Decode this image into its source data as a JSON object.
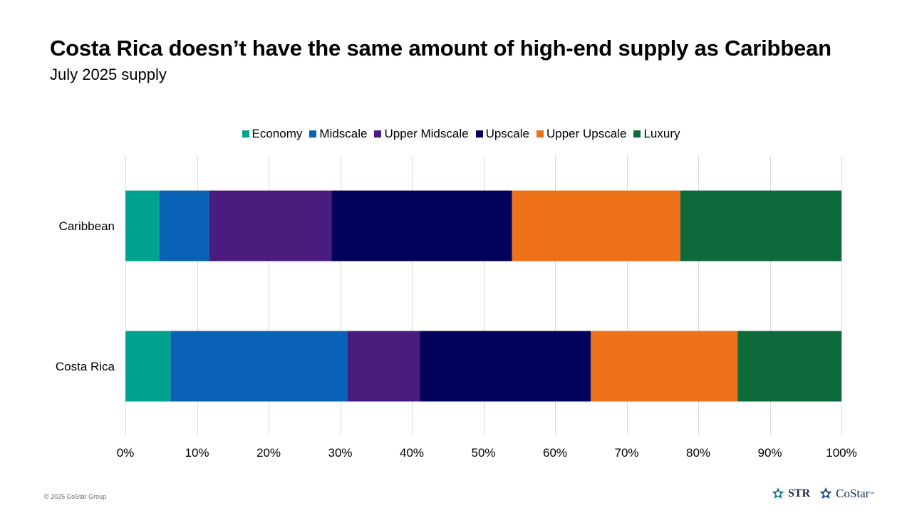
{
  "header": {
    "title": "Costa Rica doesn’t have the same amount of high-end supply as Caribbean",
    "subtitle": "July 2025 supply"
  },
  "colors": {
    "Economy": "#00a38f",
    "Midscale": "#0962b5",
    "Upper Midscale": "#4b1c7e",
    "Upscale": "#03035b",
    "Upper Upscale": "#ec7118",
    "Luxury": "#0d6a3b",
    "gridline": "#d9d9d9"
  },
  "chart_data": {
    "type": "bar",
    "orientation": "horizontal",
    "stacked": true,
    "categories": [
      "Caribbean",
      "Costa Rica"
    ],
    "series": [
      {
        "name": "Economy",
        "values": [
          4.7,
          6.3
        ]
      },
      {
        "name": "Midscale",
        "values": [
          7.0,
          24.7
        ]
      },
      {
        "name": "Upper Midscale",
        "values": [
          17.1,
          10.1
        ]
      },
      {
        "name": "Upscale",
        "values": [
          25.2,
          23.9
        ]
      },
      {
        "name": "Upper Upscale",
        "values": [
          23.5,
          20.5
        ]
      },
      {
        "name": "Luxury",
        "values": [
          22.5,
          14.5
        ]
      }
    ],
    "xlim": [
      0,
      100
    ],
    "xticks": [
      "0%",
      "10%",
      "20%",
      "30%",
      "40%",
      "50%",
      "60%",
      "70%",
      "80%",
      "90%",
      "100%"
    ],
    "legend_position": "top",
    "grid": true,
    "title": "Costa Rica doesn’t have the same amount of high-end supply as Caribbean",
    "subtitle": "July 2025 supply"
  },
  "footer": {
    "copyright": "© 2025 CoStar Group",
    "logo_str": "STR",
    "logo_costar": "CoStar",
    "trademark": "™"
  }
}
